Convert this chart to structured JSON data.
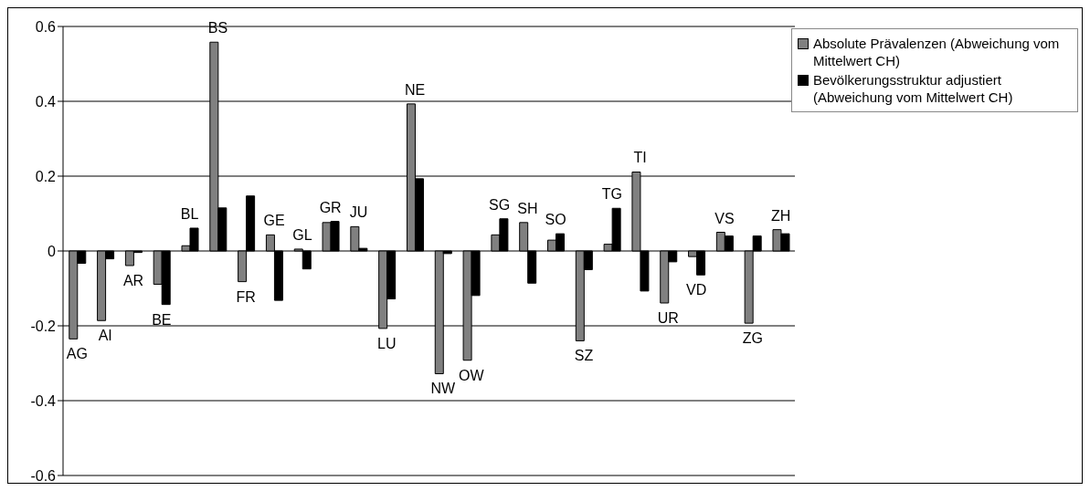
{
  "chart_data": {
    "type": "bar",
    "categories": [
      "AG",
      "AI",
      "AR",
      "BE",
      "BL",
      "BS",
      "FR",
      "GE",
      "GL",
      "GR",
      "JU",
      "LU",
      "NE",
      "NW",
      "OW",
      "SG",
      "SH",
      "SO",
      "SZ",
      "TG",
      "TI",
      "UR",
      "VD",
      "VS",
      "ZG",
      "ZH"
    ],
    "series": [
      {
        "name": "Absolute Prävalenzen (Abweichung vom Mittelwert CH)",
        "color": "#808080",
        "values": [
          -0.235,
          -0.186,
          -0.039,
          -0.089,
          0.014,
          0.558,
          -0.082,
          0.043,
          0.005,
          0.076,
          0.065,
          -0.207,
          0.393,
          -0.328,
          -0.292,
          0.043,
          0.076,
          0.029,
          -0.24,
          0.018,
          0.211,
          -0.139,
          -0.015,
          0.05,
          -0.193,
          0.057
        ]
      },
      {
        "name": "Bevölkerungsstruktur adjustiert (Abweichung vom Mittelwert CH)",
        "color": "#000000",
        "values": [
          -0.033,
          -0.021,
          -0.004,
          -0.143,
          0.061,
          0.115,
          0.147,
          -0.132,
          -0.048,
          0.079,
          0.007,
          -0.128,
          0.193,
          -0.007,
          -0.119,
          0.086,
          -0.086,
          0.046,
          -0.05,
          0.114,
          -0.107,
          -0.029,
          -0.064,
          0.04,
          0.04,
          0.046
        ]
      }
    ],
    "ylim": [
      -0.6,
      0.6
    ],
    "yticks": [
      -0.6,
      -0.4,
      -0.2,
      0,
      0.2,
      0.4,
      0.6
    ],
    "grid": "y",
    "legend": "top right"
  }
}
